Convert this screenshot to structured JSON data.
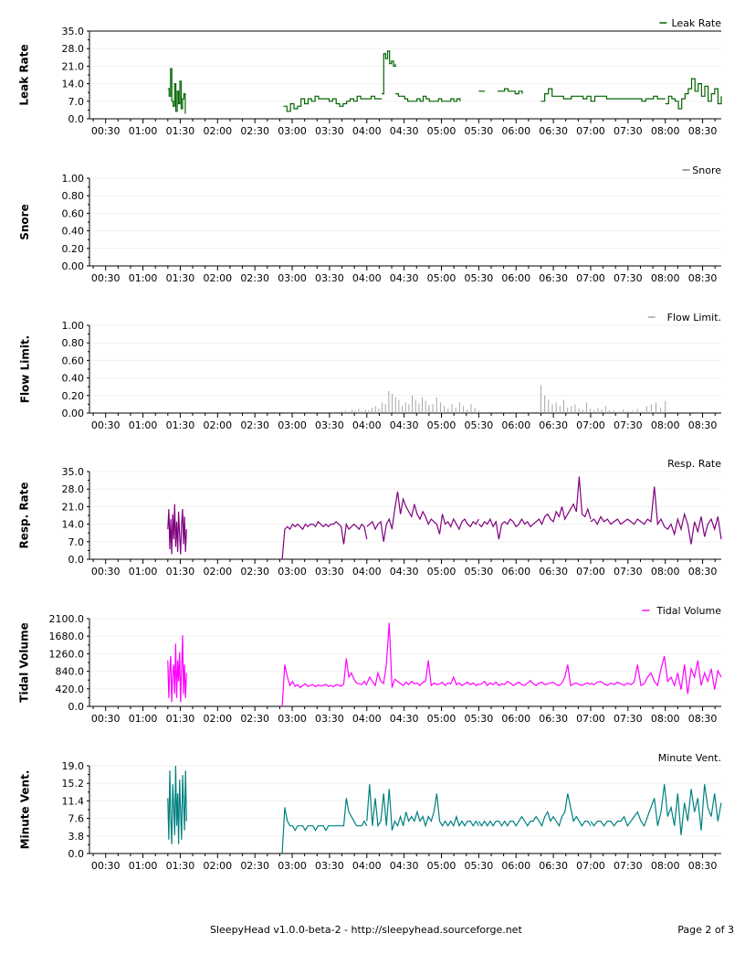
{
  "footer": {
    "title": "SleepyHead v1.0.0-beta-2 - http://sleepyhead.sourceforge.net",
    "page": "Page 2 of 3"
  },
  "x_ticks": [
    "00:30",
    "01:00",
    "01:30",
    "02:00",
    "02:30",
    "03:00",
    "03:30",
    "04:00",
    "04:30",
    "05:00",
    "05:30",
    "06:00",
    "06:30",
    "07:00",
    "07:30",
    "08:00",
    "08:30"
  ],
  "chart_data": [
    {
      "type": "line",
      "ylabel": "Leak Rate",
      "legend": "Leak Rate",
      "legend_line": true,
      "color": "#006400",
      "ylim": [
        0,
        35
      ],
      "yticks": [
        "35.0",
        "28.0",
        "21.0",
        "14.0",
        "7.0",
        "0.0"
      ],
      "grid": "horizontal",
      "top_rule": true,
      "style": "step",
      "xrange": [
        "00:17",
        "08:45"
      ],
      "segments": [
        {
          "start": "01:20",
          "end": "01:34",
          "values": [
            12,
            9,
            20,
            7,
            5,
            14,
            3,
            11,
            6,
            15,
            4,
            8,
            10,
            2
          ]
        },
        {
          "start": "02:53",
          "end": "04:12",
          "values": [
            5,
            3,
            6,
            4,
            5,
            8,
            6,
            8,
            7,
            9,
            8,
            8,
            8,
            7,
            8,
            6,
            5,
            6,
            7,
            8,
            7,
            9,
            8,
            8,
            8,
            9,
            8,
            8,
            8
          ]
        },
        {
          "start": "04:12",
          "end": "04:23",
          "values": [
            10,
            26,
            24,
            27,
            22,
            23,
            21,
            22
          ]
        },
        {
          "start": "04:23",
          "end": "05:15",
          "values": [
            10,
            9,
            9,
            8,
            7,
            7,
            7,
            8,
            7,
            9,
            8,
            7,
            7,
            7,
            8,
            7,
            7,
            7,
            8,
            7,
            8,
            7
          ]
        },
        {
          "start": "05:30",
          "end": "05:35",
          "values": [
            11,
            11
          ]
        },
        {
          "start": "05:45",
          "end": "06:05",
          "values": [
            11,
            11,
            12,
            11,
            11,
            10,
            11,
            10
          ]
        },
        {
          "start": "06:20",
          "end": "06:35",
          "values": [
            7,
            10,
            12,
            9,
            9,
            9
          ]
        },
        {
          "start": "06:35",
          "end": "08:00",
          "values": [
            9,
            8,
            8,
            9,
            9,
            9,
            8,
            9,
            7,
            9,
            9,
            9,
            8,
            8,
            8,
            8,
            8,
            8,
            8,
            8,
            8,
            7,
            8,
            8,
            9,
            8,
            8,
            8
          ]
        },
        {
          "start": "08:00",
          "end": "08:45",
          "values": [
            6,
            9,
            8,
            7,
            4,
            8,
            10,
            12,
            16,
            11,
            14,
            9,
            13,
            7,
            10,
            12,
            6,
            9
          ]
        }
      ]
    },
    {
      "type": "line",
      "ylabel": "Snore",
      "legend": "Snore",
      "legend_line": true,
      "color": "#7f7f7f",
      "ylim": [
        0,
        1
      ],
      "yticks": [
        "1.00",
        "0.80",
        "0.60",
        "0.40",
        "0.20",
        "0.00"
      ],
      "grid": "horizontal",
      "top_rule": false,
      "style": "line",
      "xrange": [
        "00:17",
        "08:45"
      ],
      "segments": []
    },
    {
      "type": "bar",
      "ylabel": "Flow Limit.",
      "legend": "Flow Limit.",
      "legend_line": true,
      "color": "#a6a6a6",
      "ylim": [
        0,
        1
      ],
      "yticks": [
        "1.00",
        "0.80",
        "0.60",
        "0.40",
        "0.20",
        "0.00"
      ],
      "grid": "horizontal",
      "top_rule": false,
      "style": "spikes",
      "xrange": [
        "00:17",
        "08:45"
      ],
      "segments": [
        {
          "start": "03:40",
          "end": "04:50",
          "values": [
            0.02,
            0.03,
            0.02,
            0.04,
            0.03,
            0.05,
            0.02,
            0.04,
            0.03,
            0.06,
            0.08,
            0.05,
            0.12,
            0.1,
            0.25,
            0.22,
            0.18,
            0.15,
            0.08,
            0.12,
            0.1,
            0.2,
            0.15,
            0.11,
            0.18,
            0.14,
            0.09
          ]
        },
        {
          "start": "04:50",
          "end": "05:30",
          "values": [
            0.05,
            0.1,
            0.18,
            0.12,
            0.08,
            0.05,
            0.1,
            0.06,
            0.12,
            0.08,
            0.04,
            0.1,
            0.06,
            0.03
          ]
        },
        {
          "start": "06:20",
          "end": "07:15",
          "values": [
            0.32,
            0.2,
            0.15,
            0.1,
            0.12,
            0.08,
            0.15,
            0.06,
            0.08,
            0.1,
            0.05,
            0.04,
            0.12,
            0.05,
            0.03,
            0.06,
            0.04,
            0.08,
            0.03
          ]
        },
        {
          "start": "07:15",
          "end": "08:00",
          "values": [
            0.02,
            0.03,
            0.02,
            0.04,
            0.02,
            0.03,
            0.05,
            0.02,
            0.08,
            0.1,
            0.12,
            0.06,
            0.14
          ]
        }
      ]
    },
    {
      "type": "line",
      "ylabel": "Resp. Rate",
      "legend": "Resp. Rate",
      "legend_line": false,
      "color": "#800080",
      "ylim": [
        0,
        35
      ],
      "yticks": [
        "35.0",
        "28.0",
        "21.0",
        "14.0",
        "7.0",
        "0.0"
      ],
      "grid": "horizontal",
      "top_rule": false,
      "style": "line",
      "xrange": [
        "00:17",
        "08:45"
      ],
      "segments": [
        {
          "start": "01:20",
          "end": "01:35",
          "values": [
            12,
            20,
            4,
            16,
            2,
            18,
            8,
            22,
            5,
            15,
            3,
            19,
            10,
            2,
            14,
            20,
            6,
            17,
            3,
            12
          ]
        },
        {
          "start": "02:52",
          "end": "04:00",
          "values": [
            0,
            12,
            13,
            12,
            14,
            13,
            14,
            13,
            12,
            14,
            13,
            14,
            14,
            13,
            15,
            14,
            13,
            14,
            13,
            14,
            14,
            15,
            14,
            13,
            6,
            14,
            12,
            13,
            14,
            13,
            12,
            14,
            13,
            8
          ]
        },
        {
          "start": "04:00",
          "end": "05:30",
          "values": [
            13,
            14,
            15,
            12,
            14,
            15,
            7,
            14,
            16,
            12,
            20,
            27,
            18,
            24,
            21,
            19,
            17,
            22,
            18,
            16,
            19,
            17,
            14,
            16,
            15,
            14,
            10,
            18,
            14,
            15,
            13,
            16,
            14,
            12,
            15,
            16,
            14,
            13,
            15,
            14,
            16
          ]
        },
        {
          "start": "05:30",
          "end": "07:00",
          "values": [
            14,
            13,
            15,
            14,
            16,
            13,
            15,
            8,
            14,
            15,
            14,
            16,
            15,
            13,
            14,
            16,
            14,
            15,
            13,
            14,
            15,
            16,
            14,
            17,
            18,
            16,
            15,
            19,
            17,
            21,
            16,
            18,
            20,
            22,
            19,
            33,
            18,
            17,
            20,
            16
          ]
        },
        {
          "start": "07:00",
          "end": "08:45",
          "values": [
            15,
            16,
            14,
            17,
            15,
            16,
            14,
            15,
            16,
            14,
            15,
            16,
            15,
            14,
            16,
            15,
            14,
            16,
            15,
            29,
            14,
            16,
            13,
            12,
            14,
            10,
            16,
            12,
            18,
            14,
            6,
            15,
            11,
            17,
            9,
            14,
            16,
            12,
            17,
            8
          ]
        }
      ]
    },
    {
      "type": "line",
      "ylabel": "Tidal Volume",
      "legend": "Tidal Volume",
      "legend_line": true,
      "color": "#ff00ff",
      "ylim": [
        0,
        2100
      ],
      "yticks": [
        "2100.0",
        "1680.0",
        "1260.0",
        "840.0",
        "420.0",
        "0.0"
      ],
      "grid": "horizontal",
      "top_rule": false,
      "style": "line",
      "xrange": [
        "00:17",
        "08:45"
      ],
      "segments": [
        {
          "start": "01:20",
          "end": "01:35",
          "values": [
            1100,
            200,
            900,
            1200,
            100,
            800,
            1000,
            300,
            1500,
            200,
            1100,
            600,
            1300,
            100,
            900,
            1700,
            300,
            1000,
            200,
            800
          ]
        },
        {
          "start": "02:52",
          "end": "04:00",
          "values": [
            0,
            1000,
            700,
            500,
            600,
            480,
            520,
            450,
            500,
            540,
            480,
            500,
            520,
            470,
            510,
            490,
            500,
            530,
            480,
            500,
            470,
            520,
            510,
            480,
            540,
            1150,
            700,
            800,
            650,
            560,
            540,
            520,
            600,
            500
          ]
        },
        {
          "start": "04:00",
          "end": "05:30",
          "values": [
            540,
            700,
            600,
            500,
            800,
            600,
            550,
            1000,
            2000,
            450,
            650,
            600,
            550,
            500,
            580,
            520,
            600,
            540,
            560,
            500,
            580,
            600,
            1100,
            500,
            560,
            520,
            540,
            580,
            500,
            560,
            540,
            700,
            520,
            560,
            500,
            540,
            580,
            520,
            560,
            500,
            540
          ]
        },
        {
          "start": "05:30",
          "end": "07:00",
          "values": [
            520,
            540,
            600,
            500,
            560,
            520,
            580,
            500,
            540,
            520,
            600,
            560,
            500,
            540,
            580,
            520,
            500,
            560,
            620,
            540,
            500,
            560,
            580,
            520,
            540,
            560,
            580,
            520,
            500,
            560,
            700,
            1000,
            500,
            540,
            560,
            520,
            500,
            540,
            560,
            520
          ]
        },
        {
          "start": "07:00",
          "end": "08:45",
          "values": [
            560,
            520,
            580,
            600,
            540,
            500,
            560,
            520,
            580,
            540,
            500,
            560,
            520,
            580,
            1000,
            500,
            540,
            700,
            800,
            600,
            500,
            900,
            1200,
            600,
            700,
            500,
            800,
            400,
            1000,
            300,
            900,
            700,
            1100,
            500,
            800,
            600,
            900,
            400,
            850,
            700
          ]
        }
      ]
    },
    {
      "type": "line",
      "ylabel": "Minute Vent.",
      "legend": "Minute Vent.",
      "legend_line": false,
      "color": "#008080",
      "ylim": [
        0,
        19
      ],
      "yticks": [
        "19.0",
        "15.2",
        "11.4",
        "7.6",
        "3.8",
        "0.0"
      ],
      "grid": "horizontal",
      "top_rule": false,
      "style": "line",
      "xrange": [
        "00:17",
        "08:45"
      ],
      "segments": [
        {
          "start": "01:20",
          "end": "01:35",
          "values": [
            12,
            3,
            18,
            8,
            2,
            15,
            10,
            4,
            19,
            6,
            13,
            2,
            16,
            9,
            3,
            17,
            11,
            5,
            18,
            7
          ]
        },
        {
          "start": "02:52",
          "end": "04:00",
          "values": [
            0,
            10,
            7,
            6,
            6,
            5,
            6,
            6,
            6,
            5,
            6,
            6,
            6,
            5,
            6,
            6,
            6,
            5,
            6,
            6,
            6,
            6,
            6,
            6,
            6,
            12,
            9,
            8,
            7,
            6,
            6,
            6,
            7,
            6
          ]
        },
        {
          "start": "04:00",
          "end": "05:30",
          "values": [
            7,
            15,
            6,
            12,
            6,
            7,
            13,
            6,
            14,
            5,
            7,
            6,
            8,
            6,
            9,
            7,
            8,
            7,
            9,
            7,
            8,
            6,
            8,
            7,
            9,
            13,
            7,
            6,
            7,
            6,
            7,
            6,
            8,
            6,
            7,
            6,
            7,
            7,
            6,
            7,
            6
          ]
        },
        {
          "start": "05:30",
          "end": "07:00",
          "values": [
            7,
            6,
            7,
            6,
            7,
            6,
            7,
            7,
            6,
            7,
            6,
            7,
            7,
            6,
            7,
            8,
            7,
            6,
            7,
            7,
            8,
            7,
            6,
            8,
            9,
            7,
            8,
            7,
            6,
            8,
            9,
            13,
            10,
            7,
            8,
            7,
            6,
            7,
            7,
            6
          ]
        },
        {
          "start": "07:00",
          "end": "08:45",
          "values": [
            7,
            6,
            7,
            7,
            6,
            7,
            7,
            6,
            7,
            7,
            8,
            6,
            7,
            8,
            9,
            7,
            6,
            8,
            10,
            12,
            6,
            9,
            15,
            8,
            10,
            6,
            13,
            4,
            11,
            7,
            14,
            9,
            12,
            5,
            15,
            10,
            8,
            13,
            7,
            11
          ]
        }
      ]
    }
  ]
}
